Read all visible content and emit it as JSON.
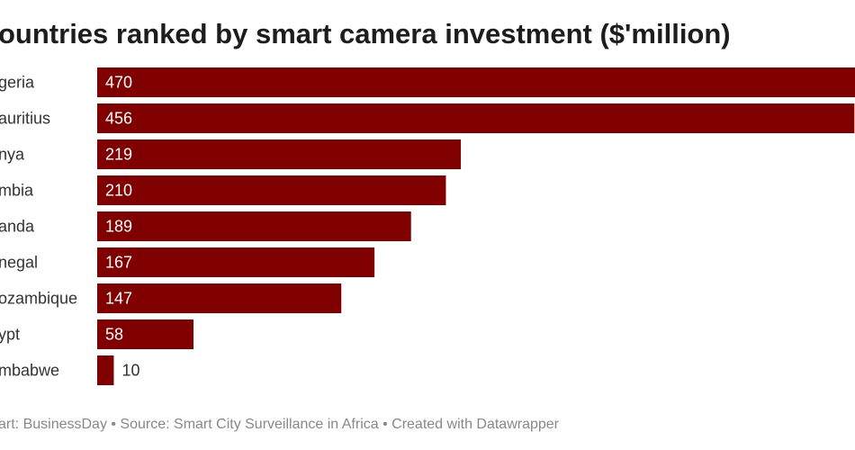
{
  "chart_data": {
    "type": "bar",
    "orientation": "horizontal",
    "title": "ountries ranked by smart camera investment ($'million)",
    "categories": [
      "geria",
      "auritius",
      "nya",
      "mbia",
      "anda",
      "negal",
      "ozambique",
      "ypt",
      "mbabwe"
    ],
    "values": [
      470,
      456,
      219,
      210,
      189,
      167,
      147,
      58,
      10
    ],
    "color": "#800000",
    "footer": "art: BusinessDay • Source: Smart City Surveillance in Africa • Created with Datawrapper"
  }
}
